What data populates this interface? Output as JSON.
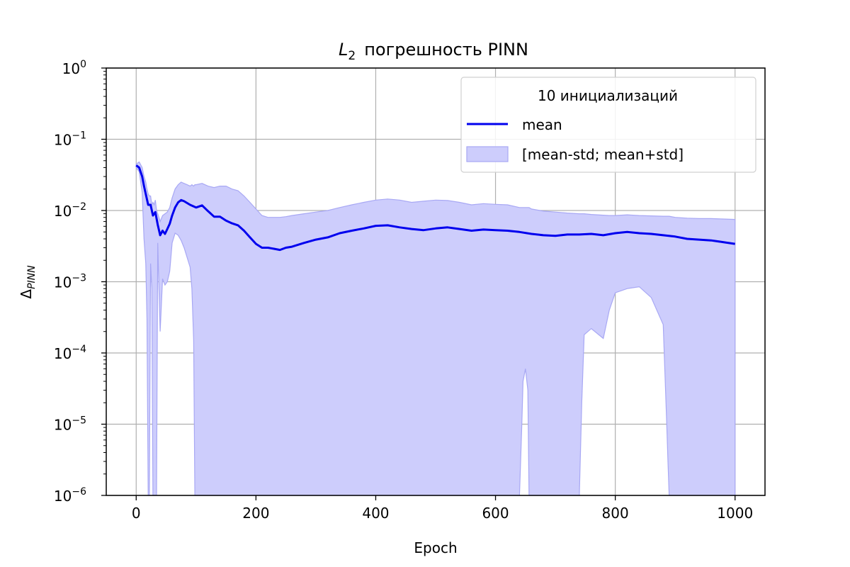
{
  "chart_data": {
    "type": "line",
    "title_math": "L",
    "title_sub": "2",
    "title_text": "погрешность  PINN",
    "xlabel": "Epoch",
    "ylabel_main": "Δ",
    "ylabel_sub": "PINN",
    "xlim": [
      -50,
      1050
    ],
    "ylim": [
      1e-06,
      1
    ],
    "yscale": "log",
    "grid": true,
    "x_ticks": [
      0,
      200,
      400,
      600,
      800,
      1000
    ],
    "x_tick_labels": [
      "0",
      "200",
      "400",
      "600",
      "800",
      "1000"
    ],
    "y_tick_values": [
      1e-06,
      1e-05,
      0.0001,
      0.001,
      0.01,
      0.1,
      1
    ],
    "y_tick_base": "10",
    "y_tick_exponents": [
      "−6",
      "−5",
      "−4",
      "−3",
      "−2",
      "−1",
      "0"
    ],
    "legend": {
      "title": "10 инициализаций",
      "placement": "upper-right",
      "entries": [
        "mean",
        "[mean-std; mean+std]"
      ]
    },
    "colors": {
      "mean": "#0000ee",
      "band_fill": "#cdcdfc",
      "band_edge": "#a8a8f4",
      "grid": "#b0b0b0"
    },
    "series": [
      {
        "name": "mean",
        "x": [
          0,
          5,
          10,
          13,
          16,
          20,
          24,
          28,
          32,
          36,
          40,
          44,
          48,
          52,
          56,
          60,
          65,
          70,
          75,
          80,
          90,
          100,
          110,
          120,
          130,
          140,
          150,
          160,
          170,
          180,
          190,
          200,
          210,
          220,
          230,
          240,
          250,
          260,
          280,
          300,
          320,
          340,
          360,
          380,
          400,
          420,
          440,
          460,
          480,
          500,
          520,
          540,
          560,
          580,
          600,
          620,
          640,
          660,
          680,
          700,
          720,
          740,
          760,
          780,
          800,
          820,
          840,
          860,
          880,
          900,
          920,
          940,
          960,
          980,
          1000
        ],
        "y": [
          0.043,
          0.04,
          0.03,
          0.022,
          0.017,
          0.012,
          0.012,
          0.0085,
          0.0095,
          0.0063,
          0.0045,
          0.0052,
          0.0047,
          0.0055,
          0.0065,
          0.0085,
          0.011,
          0.013,
          0.014,
          0.0135,
          0.012,
          0.011,
          0.0118,
          0.0098,
          0.0082,
          0.0082,
          0.0072,
          0.0066,
          0.0062,
          0.0052,
          0.0042,
          0.0034,
          0.003,
          0.003,
          0.0029,
          0.0028,
          0.003,
          0.0031,
          0.0035,
          0.0039,
          0.0042,
          0.0048,
          0.0052,
          0.0056,
          0.0061,
          0.0062,
          0.0058,
          0.0055,
          0.0053,
          0.0056,
          0.0058,
          0.0055,
          0.0052,
          0.0054,
          0.0053,
          0.0052,
          0.005,
          0.0047,
          0.0045,
          0.0044,
          0.0046,
          0.0046,
          0.0047,
          0.0045,
          0.0048,
          0.005,
          0.0048,
          0.0047,
          0.0045,
          0.0043,
          0.004,
          0.0039,
          0.0038,
          0.0036,
          0.0034
        ]
      }
    ],
    "band": {
      "name": "[mean-std; mean+std]",
      "x": [
        0,
        5,
        10,
        13,
        16,
        18,
        20,
        22,
        24,
        26,
        28,
        30,
        32,
        34,
        36,
        38,
        40,
        44,
        48,
        52,
        56,
        60,
        65,
        70,
        75,
        80,
        85,
        90,
        93,
        96,
        98,
        100,
        110,
        120,
        130,
        140,
        150,
        160,
        170,
        180,
        190,
        200,
        210,
        220,
        230,
        240,
        250,
        260,
        280,
        300,
        320,
        340,
        360,
        380,
        400,
        420,
        440,
        460,
        480,
        500,
        520,
        540,
        560,
        580,
        600,
        620,
        640,
        644,
        646,
        650,
        654,
        656,
        660,
        680,
        700,
        720,
        740,
        744,
        748,
        760,
        780,
        790,
        800,
        820,
        840,
        860,
        880,
        886,
        888,
        890,
        900,
        920,
        940,
        960,
        980,
        1000
      ],
      "upper": [
        0.045,
        0.048,
        0.04,
        0.03,
        0.025,
        0.02,
        0.017,
        0.016,
        0.016,
        0.012,
        0.013,
        0.012,
        0.014,
        0.01,
        0.009,
        0.008,
        0.007,
        0.0085,
        0.009,
        0.0095,
        0.011,
        0.015,
        0.02,
        0.023,
        0.025,
        0.024,
        0.023,
        0.022,
        0.023,
        0.022,
        0.023,
        0.023,
        0.024,
        0.022,
        0.021,
        0.022,
        0.022,
        0.02,
        0.019,
        0.016,
        0.013,
        0.0105,
        0.0085,
        0.008,
        0.008,
        0.008,
        0.0082,
        0.0085,
        0.009,
        0.0095,
        0.01,
        0.011,
        0.012,
        0.013,
        0.014,
        0.0145,
        0.014,
        0.013,
        0.0135,
        0.014,
        0.0138,
        0.013,
        0.012,
        0.0125,
        0.0122,
        0.012,
        0.011,
        0.011,
        0.011,
        0.011,
        0.011,
        0.011,
        0.0105,
        0.0098,
        0.0095,
        0.0092,
        0.009,
        0.009,
        0.009,
        0.0088,
        0.0086,
        0.0085,
        0.0085,
        0.0087,
        0.0085,
        0.0084,
        0.0083,
        0.0083,
        0.0083,
        0.0083,
        0.008,
        0.0078,
        0.0077,
        0.0077,
        0.0076,
        0.0075
      ],
      "lower": [
        0.04,
        0.035,
        0.018,
        0.004,
        0.0018,
        0.0003,
        1e-06,
        1e-06,
        0.0018,
        0.0008,
        1e-06,
        1e-06,
        1e-06,
        1e-06,
        0.0035,
        0.0008,
        0.0002,
        0.0011,
        0.0009,
        0.001,
        0.0014,
        0.0035,
        0.0048,
        0.0045,
        0.0038,
        0.003,
        0.0022,
        0.0016,
        0.0008,
        0.00015,
        1e-06,
        1e-06,
        1e-06,
        1e-06,
        1e-06,
        1e-06,
        1e-06,
        1e-06,
        1e-06,
        1e-06,
        1e-06,
        1e-06,
        1e-06,
        1e-06,
        1e-06,
        1e-06,
        1e-06,
        1e-06,
        1e-06,
        1e-06,
        1e-06,
        1e-06,
        1e-06,
        1e-06,
        1e-06,
        1e-06,
        1e-06,
        1e-06,
        1e-06,
        1e-06,
        1e-06,
        1e-06,
        1e-06,
        1e-06,
        1e-06,
        1e-06,
        1e-06,
        1e-05,
        4e-05,
        6e-05,
        3e-05,
        1e-06,
        1e-06,
        1e-06,
        1e-06,
        1e-06,
        1e-06,
        2e-05,
        0.00018,
        0.00022,
        0.00016,
        0.0004,
        0.0007,
        0.0008,
        0.00085,
        0.0006,
        0.00025,
        1e-05,
        3e-06,
        1e-06,
        1e-06,
        1e-06,
        1e-06,
        1e-06,
        1e-06,
        1e-06
      ]
    }
  }
}
